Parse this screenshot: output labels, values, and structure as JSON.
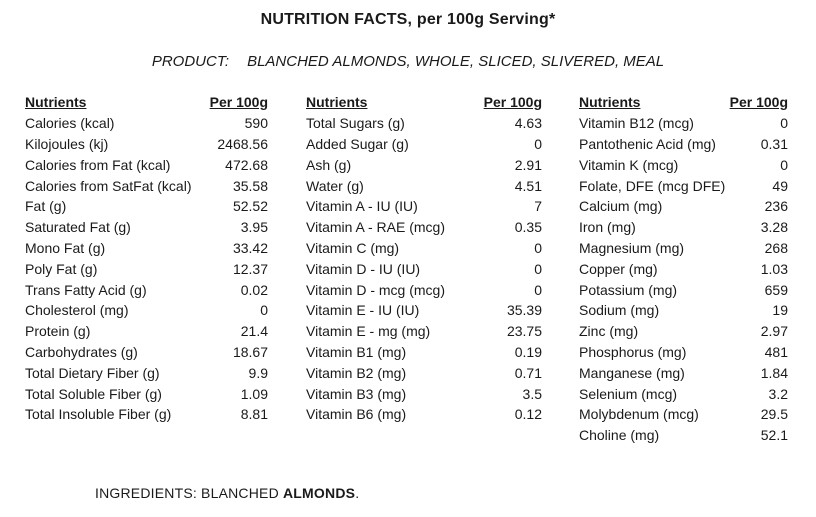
{
  "colors": {
    "text": "#1a1a1a",
    "background": "#ffffff"
  },
  "header": {
    "title": "NUTRITION FACTS, per 100g Serving*",
    "product_label": "PRODUCT:",
    "product_value": "BLANCHED ALMONDS, WHOLE, SLICED, SLIVERED, MEAL"
  },
  "table": {
    "columns": [
      {
        "nutrient_header": "Nutrients",
        "value_header": "Per 100g",
        "rows": [
          {
            "label": "Calories (kcal)",
            "value": "590"
          },
          {
            "label": "Kilojoules (kj)",
            "value": "2468.56"
          },
          {
            "label": "Calories from Fat (kcal)",
            "value": "472.68"
          },
          {
            "label": "Calories from SatFat (kcal)",
            "value": "35.58"
          },
          {
            "label": "Fat (g)",
            "value": "52.52"
          },
          {
            "label": "Saturated Fat (g)",
            "value": "3.95"
          },
          {
            "label": "Mono Fat (g)",
            "value": "33.42"
          },
          {
            "label": "Poly Fat (g)",
            "value": "12.37"
          },
          {
            "label": "Trans Fatty Acid (g)",
            "value": "0.02"
          },
          {
            "label": "Cholesterol (mg)",
            "value": "0"
          },
          {
            "label": "Protein (g)",
            "value": "21.4"
          },
          {
            "label": "Carbohydrates (g)",
            "value": "18.67"
          },
          {
            "label": "Total Dietary Fiber (g)",
            "value": "9.9"
          },
          {
            "label": "Total Soluble Fiber (g)",
            "value": "1.09"
          },
          {
            "label": "Total Insoluble Fiber (g)",
            "value": "8.81"
          }
        ]
      },
      {
        "nutrient_header": "Nutrients",
        "value_header": "Per 100g",
        "rows": [
          {
            "label": "Total Sugars (g)",
            "value": "4.63"
          },
          {
            "label": "Added Sugar (g)",
            "value": "0"
          },
          {
            "label": "Ash (g)",
            "value": "2.91"
          },
          {
            "label": "Water (g)",
            "value": "4.51"
          },
          {
            "label": "Vitamin A - IU (IU)",
            "value": "7"
          },
          {
            "label": "Vitamin A - RAE (mcg)",
            "value": "0.35"
          },
          {
            "label": "Vitamin C (mg)",
            "value": "0"
          },
          {
            "label": "Vitamin D - IU (IU)",
            "value": "0"
          },
          {
            "label": "Vitamin D - mcg (mcg)",
            "value": "0"
          },
          {
            "label": "Vitamin E - IU (IU)",
            "value": "35.39"
          },
          {
            "label": "Vitamin E - mg (mg)",
            "value": "23.75"
          },
          {
            "label": "Vitamin B1 (mg)",
            "value": "0.19"
          },
          {
            "label": "Vitamin B2 (mg)",
            "value": "0.71"
          },
          {
            "label": "Vitamin B3 (mg)",
            "value": "3.5"
          },
          {
            "label": "Vitamin B6 (mg)",
            "value": "0.12"
          }
        ]
      },
      {
        "nutrient_header": "Nutrients",
        "value_header": "Per 100g",
        "rows": [
          {
            "label": "Vitamin B12 (mcg)",
            "value": "0"
          },
          {
            "label": "Pantothenic Acid (mg)",
            "value": "0.31"
          },
          {
            "label": "Vitamin K (mcg)",
            "value": "0"
          },
          {
            "label": "Folate, DFE (mcg DFE)",
            "value": "49"
          },
          {
            "label": "Calcium (mg)",
            "value": "236"
          },
          {
            "label": "Iron (mg)",
            "value": "3.28"
          },
          {
            "label": "Magnesium (mg)",
            "value": "268"
          },
          {
            "label": "Copper (mg)",
            "value": "1.03"
          },
          {
            "label": "Potassium (mg)",
            "value": "659"
          },
          {
            "label": "Sodium (mg)",
            "value": "19"
          },
          {
            "label": "Zinc (mg)",
            "value": "2.97"
          },
          {
            "label": "Phosphorus (mg)",
            "value": "481"
          },
          {
            "label": "Manganese (mg)",
            "value": "1.84"
          },
          {
            "label": "Selenium (mcg)",
            "value": "3.2"
          },
          {
            "label": "Molybdenum (mcg)",
            "value": "29.5"
          },
          {
            "label": "Choline (mg)",
            "value": "52.1"
          }
        ]
      }
    ]
  },
  "ingredients": {
    "prefix": "INGREDIENTS: BLANCHED ",
    "emphasis": "ALMONDS",
    "suffix": "."
  }
}
